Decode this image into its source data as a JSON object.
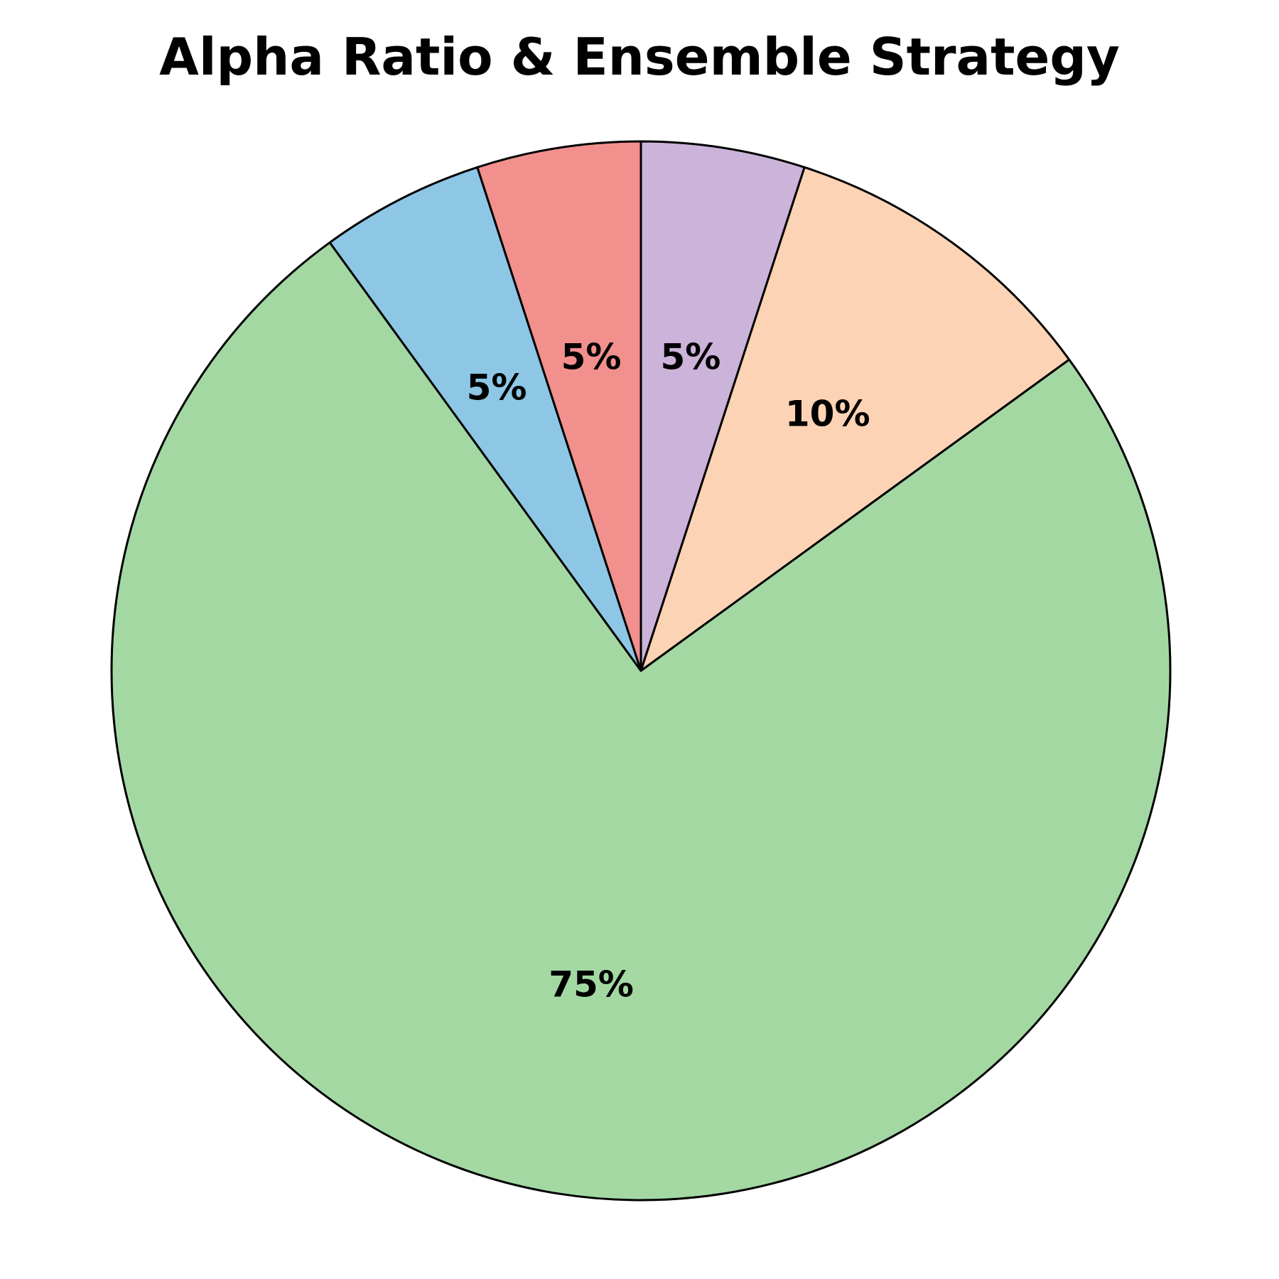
{
  "chart_data": {
    "type": "pie",
    "title": "Alpha Ratio & Ensemble Strategy",
    "start_angle_deg": 90,
    "direction": "clockwise",
    "slices": [
      {
        "value": 5,
        "label": "5%",
        "color": "#CBB3D9"
      },
      {
        "value": 10,
        "label": "10%",
        "color": "#FCD3B4"
      },
      {
        "value": 75,
        "label": "75%",
        "color": "#A3D8A3"
      },
      {
        "value": 5,
        "label": "5%",
        "color": "#8EC7E6"
      },
      {
        "value": 5,
        "label": "5%",
        "color": "#F2908E"
      }
    ]
  }
}
